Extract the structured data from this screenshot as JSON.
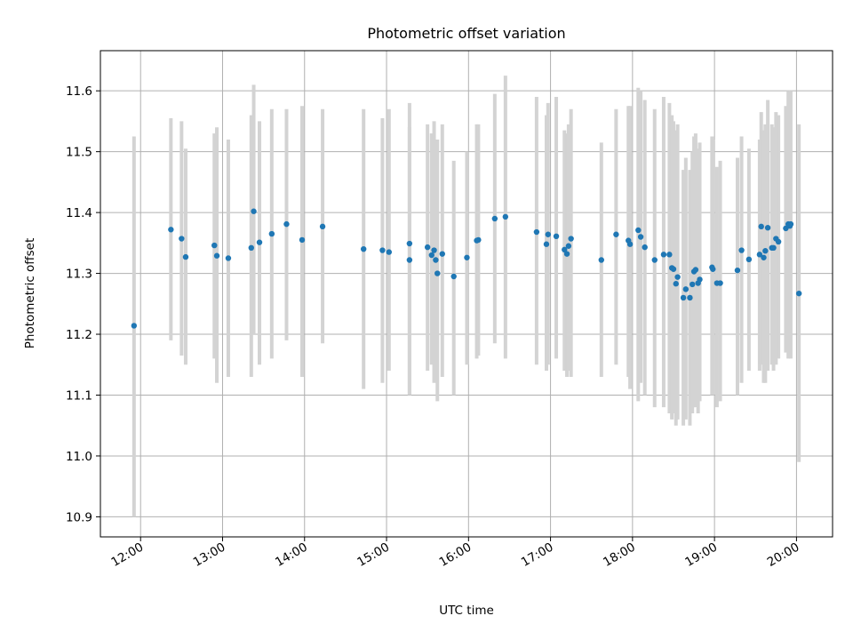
{
  "chart_data": {
    "type": "scatter",
    "title": "Photometric offset variation",
    "xlabel": "UTC time",
    "ylabel": "Photometric offset",
    "x_unit": "hour",
    "xlim": [
      11.51,
      20.44
    ],
    "ylim": [
      10.867,
      11.666
    ],
    "x_ticks": [
      {
        "value": 12,
        "label": "12:00"
      },
      {
        "value": 13,
        "label": "13:00"
      },
      {
        "value": 14,
        "label": "14:00"
      },
      {
        "value": 15,
        "label": "15:00"
      },
      {
        "value": 16,
        "label": "16:00"
      },
      {
        "value": 17,
        "label": "17:00"
      },
      {
        "value": 18,
        "label": "18:00"
      },
      {
        "value": 19,
        "label": "19:00"
      },
      {
        "value": 20,
        "label": "20:00"
      }
    ],
    "y_ticks": [
      {
        "value": 10.9,
        "label": "10.9"
      },
      {
        "value": 11.0,
        "label": "11.0"
      },
      {
        "value": 11.1,
        "label": "11.1"
      },
      {
        "value": 11.2,
        "label": "11.2"
      },
      {
        "value": 11.3,
        "label": "11.3"
      },
      {
        "value": 11.4,
        "label": "11.4"
      },
      {
        "value": 11.5,
        "label": "11.5"
      },
      {
        "value": 11.6,
        "label": "11.6"
      }
    ],
    "grid": true,
    "colors": {
      "points": "#1f77b4",
      "error_bars": "#d3d3d3",
      "grid": "#b0b0b0"
    },
    "series": [
      {
        "x": [
          11.92,
          12.37,
          12.5,
          12.55,
          12.9,
          12.93,
          13.07,
          13.35,
          13.38,
          13.45,
          13.6,
          13.78,
          13.97,
          14.22,
          14.72,
          14.95,
          15.03,
          15.28,
          15.28,
          15.5,
          15.55,
          15.58,
          15.6,
          15.62,
          15.68,
          15.82,
          15.98,
          16.1,
          16.12,
          16.32,
          16.45,
          16.83,
          16.95,
          16.97,
          17.07,
          17.17,
          17.2,
          17.22,
          17.25,
          17.62,
          17.8,
          17.95,
          17.97,
          18.07,
          18.1,
          18.15,
          18.27,
          18.38,
          18.45,
          18.48,
          18.5,
          18.53,
          18.55,
          18.62,
          18.65,
          18.7,
          18.73,
          18.75,
          18.77,
          18.8,
          18.82,
          18.97,
          18.98,
          19.03,
          19.07,
          19.28,
          19.33,
          19.42,
          19.55,
          19.57,
          19.6,
          19.62,
          19.65,
          19.7,
          19.72,
          19.75,
          19.78,
          19.87,
          19.9,
          19.92,
          19.93,
          20.03
        ],
        "y": [
          11.214,
          11.372,
          11.357,
          11.327,
          11.346,
          11.329,
          11.325,
          11.342,
          11.402,
          11.351,
          11.365,
          11.381,
          11.355,
          11.377,
          11.34,
          11.338,
          11.335,
          11.349,
          11.322,
          11.343,
          11.33,
          11.338,
          11.322,
          11.3,
          11.332,
          11.295,
          11.326,
          11.354,
          11.355,
          11.39,
          11.393,
          11.368,
          11.348,
          11.364,
          11.361,
          11.339,
          11.332,
          11.345,
          11.357,
          11.322,
          11.364,
          11.354,
          11.348,
          11.371,
          11.36,
          11.343,
          11.322,
          11.331,
          11.331,
          11.309,
          11.307,
          11.283,
          11.294,
          11.26,
          11.274,
          11.26,
          11.282,
          11.303,
          11.306,
          11.284,
          11.29,
          11.31,
          11.307,
          11.284,
          11.284,
          11.305,
          11.338,
          11.323,
          11.331,
          11.377,
          11.326,
          11.337,
          11.375,
          11.342,
          11.342,
          11.357,
          11.352,
          11.374,
          11.381,
          11.378,
          11.381,
          11.267
        ],
        "y_lower": [
          10.9,
          11.19,
          11.165,
          11.15,
          11.16,
          11.12,
          11.13,
          11.13,
          11.2,
          11.15,
          11.16,
          11.19,
          11.13,
          11.185,
          11.11,
          11.12,
          11.14,
          11.1,
          11.1,
          11.14,
          11.15,
          11.12,
          11.14,
          11.09,
          11.13,
          11.1,
          11.15,
          11.16,
          11.165,
          11.185,
          11.16,
          11.15,
          11.14,
          11.15,
          11.16,
          11.14,
          11.13,
          11.14,
          11.13,
          11.13,
          11.15,
          11.13,
          11.11,
          11.09,
          11.12,
          11.1,
          11.08,
          11.08,
          11.07,
          11.06,
          11.07,
          11.05,
          11.06,
          11.05,
          11.06,
          11.05,
          11.07,
          11.08,
          11.08,
          11.07,
          11.09,
          11.1,
          11.1,
          11.08,
          11.09,
          11.1,
          11.12,
          11.14,
          11.14,
          11.15,
          11.12,
          11.12,
          11.14,
          11.15,
          11.14,
          11.15,
          11.16,
          11.17,
          11.16,
          11.17,
          11.16,
          10.99
        ],
        "y_upper": [
          11.525,
          11.555,
          11.55,
          11.505,
          11.53,
          11.54,
          11.52,
          11.56,
          11.61,
          11.55,
          11.57,
          11.57,
          11.575,
          11.57,
          11.57,
          11.555,
          11.57,
          11.54,
          11.58,
          11.545,
          11.53,
          11.55,
          11.505,
          11.52,
          11.545,
          11.485,
          11.5,
          11.545,
          11.545,
          11.595,
          11.625,
          11.59,
          11.56,
          11.58,
          11.59,
          11.535,
          11.53,
          11.545,
          11.57,
          11.515,
          11.57,
          11.575,
          11.575,
          11.605,
          11.6,
          11.585,
          11.57,
          11.59,
          11.58,
          11.56,
          11.55,
          11.535,
          11.545,
          11.47,
          11.49,
          11.47,
          11.5,
          11.525,
          11.53,
          11.505,
          11.515,
          11.525,
          11.52,
          11.475,
          11.485,
          11.49,
          11.525,
          11.505,
          11.52,
          11.565,
          11.535,
          11.545,
          11.585,
          11.545,
          11.54,
          11.565,
          11.56,
          11.575,
          11.6,
          11.585,
          11.6,
          11.545
        ]
      }
    ]
  }
}
